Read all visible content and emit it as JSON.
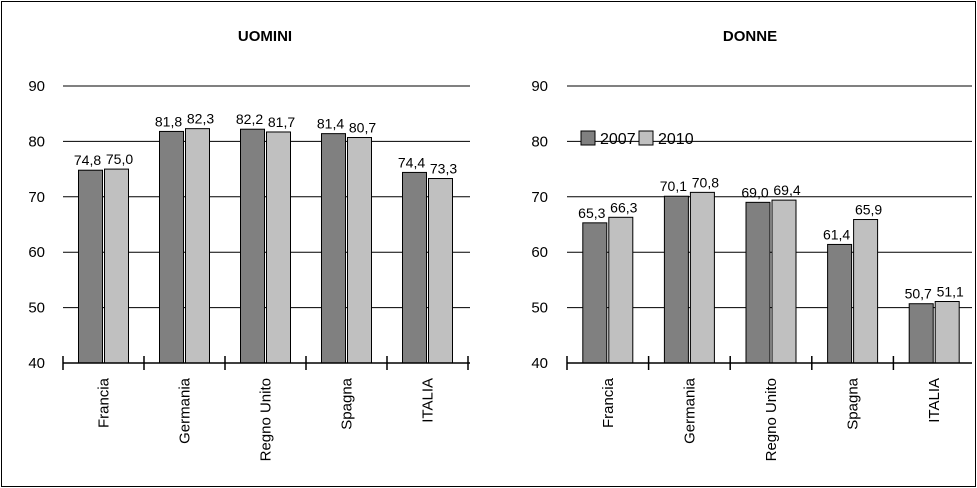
{
  "chart_data": [
    {
      "type": "bar",
      "title": "UOMINI",
      "categories": [
        "Francia",
        "Germania",
        "Regno Unito",
        "Spagna",
        "ITALIA"
      ],
      "series": [
        {
          "name": "2007",
          "values": [
            74.8,
            81.8,
            82.2,
            81.4,
            74.4
          ],
          "labels": [
            "74,8",
            "81,8",
            "82,2",
            "81,4",
            "74,4"
          ],
          "color": "#808080"
        },
        {
          "name": "2010",
          "values": [
            75.0,
            82.3,
            81.7,
            80.7,
            73.3
          ],
          "labels": [
            "75,0",
            "82,3",
            "81,7",
            "80,7",
            "73,3"
          ],
          "color": "#c0c0c0"
        }
      ],
      "yticks": [
        "90",
        "80",
        "70",
        "60",
        "50",
        "40"
      ],
      "ylim": [
        40,
        90
      ],
      "grid": true,
      "legend": false
    },
    {
      "type": "bar",
      "title": "DONNE",
      "categories": [
        "Francia",
        "Germania",
        "Regno Unito",
        "Spagna",
        "ITALIA"
      ],
      "series": [
        {
          "name": "2007",
          "values": [
            65.3,
            70.1,
            69.0,
            61.4,
            50.7
          ],
          "labels": [
            "65,3",
            "70,1",
            "69,0",
            "61,4",
            "50,7"
          ],
          "color": "#808080"
        },
        {
          "name": "2010",
          "values": [
            66.3,
            70.8,
            69.4,
            65.9,
            51.1
          ],
          "labels": [
            "66,3",
            "70,8",
            "69,4",
            "65,9",
            "51,1"
          ],
          "color": "#c0c0c0"
        }
      ],
      "yticks": [
        "90",
        "80",
        "70",
        "60",
        "50",
        "40"
      ],
      "ylim": [
        40,
        90
      ],
      "grid": true,
      "legend": true,
      "legend_position": "top-left"
    }
  ]
}
